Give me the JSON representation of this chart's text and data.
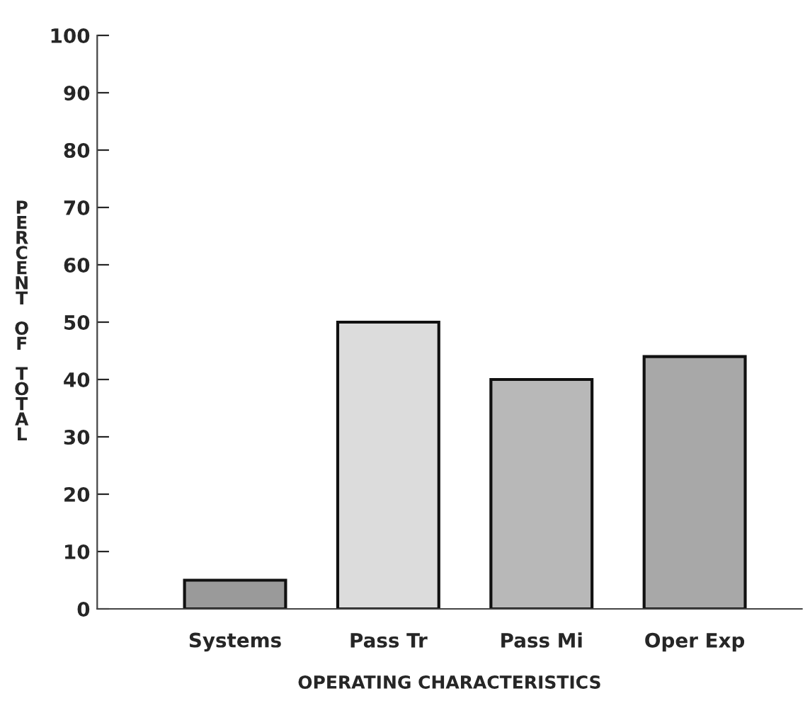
{
  "chart_data": {
    "type": "bar",
    "xlabel": "OPERATING CHARACTERISTICS",
    "ylabel": "PERCENT OF TOTAL",
    "categories": [
      "Systems",
      "Pass Tr",
      "Pass Mi",
      "Oper Exp"
    ],
    "values": [
      5,
      50,
      40,
      44
    ],
    "colors": [
      "#9a9a9a",
      "#dcdcdc",
      "#b8b8b8",
      "#a8a8a8"
    ],
    "ylim": [
      0,
      100
    ],
    "yticks": [
      0,
      10,
      20,
      30,
      40,
      50,
      60,
      70,
      80,
      90,
      100
    ],
    "grid": false
  }
}
